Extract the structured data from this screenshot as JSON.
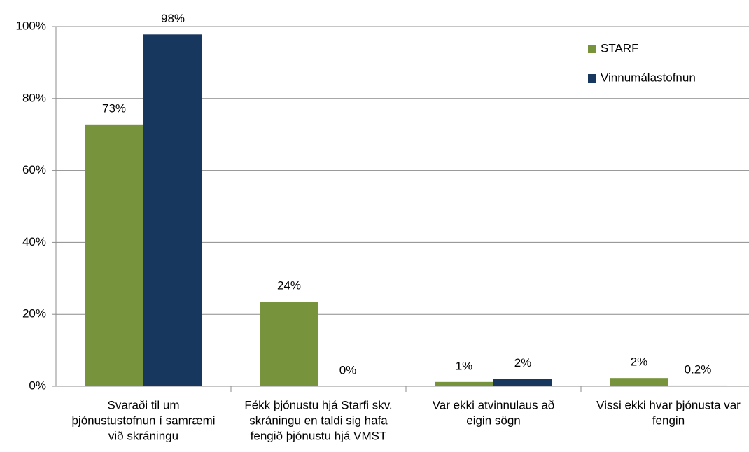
{
  "chart_data": {
    "type": "bar",
    "categories": [
      [
        "Svaraði til um",
        "þjónustustofnun í samræmi",
        "við skráningu"
      ],
      [
        "Fékk þjónustu hjá Starfi skv.",
        "skráningu en taldi sig hafa",
        "fengið þjónustu hjá VMST"
      ],
      [
        "Var ekki atvinnulaus að",
        "eigin sögn"
      ],
      [
        "Vissi ekki hvar þjónusta var",
        "fengin"
      ]
    ],
    "series": [
      {
        "name": "STARF",
        "color": "#77933c",
        "values": [
          72.8,
          23.5,
          1.2,
          2.3
        ],
        "value_labels": [
          "73%",
          "24%",
          "1%",
          "2%"
        ]
      },
      {
        "name": "Vinnumálastofnun",
        "color": "#17375e",
        "values": [
          97.8,
          0,
          2,
          0.2
        ],
        "value_labels": [
          "98%",
          "0%",
          "2%",
          "0.2%"
        ]
      }
    ],
    "ylim": [
      0,
      100
    ],
    "yticks": [
      {
        "value": 0,
        "label": "0%"
      },
      {
        "value": 20,
        "label": "20%"
      },
      {
        "value": 40,
        "label": "40%"
      },
      {
        "value": 60,
        "label": "60%"
      },
      {
        "value": 80,
        "label": "80%"
      },
      {
        "value": 100,
        "label": "100%"
      }
    ],
    "grid": true,
    "legend": "top-right"
  }
}
